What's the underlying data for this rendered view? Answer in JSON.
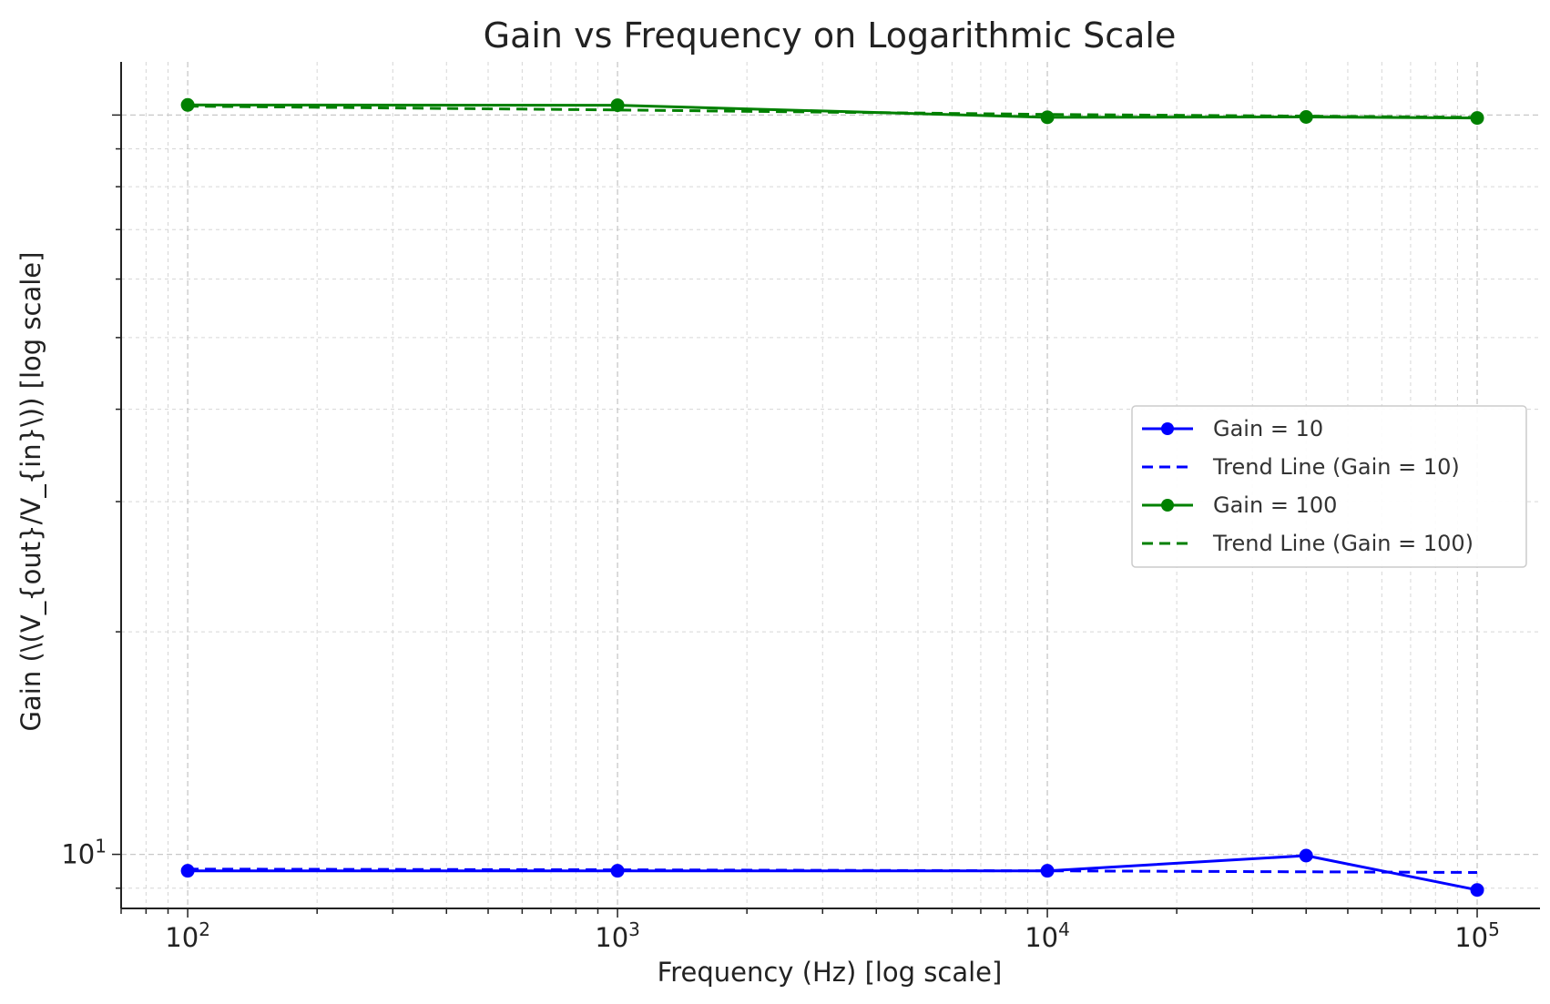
{
  "chart_data": {
    "type": "line",
    "title": "Gain vs Frequency on Logarithmic Scale",
    "xlabel": "Frequency (Hz) [log scale]",
    "ylabel": "Gain (\\(V_{out}/V_{in}\\)) [log scale]",
    "xscale": "log",
    "yscale": "log",
    "xlim": [
      70,
      140000
    ],
    "ylim": [
      8.45,
      118
    ],
    "grid": true,
    "legend_position": "center-right",
    "x_ticks": [
      {
        "base": "10",
        "exp": "2"
      },
      {
        "base": "10",
        "exp": "3"
      },
      {
        "base": "10",
        "exp": "4"
      },
      {
        "base": "10",
        "exp": "5"
      }
    ],
    "y_ticks": [
      {
        "value": 10,
        "base": "10",
        "exp": "1"
      }
    ],
    "series": [
      {
        "name": "Gain = 10",
        "color": "#0000ff",
        "style": "solid",
        "marker": "circle",
        "x": [
          100,
          1000,
          10000,
          40000,
          100000
        ],
        "y": [
          9.5,
          9.5,
          9.5,
          9.96,
          8.95
        ]
      },
      {
        "name": "Trend Line (Gain = 10)",
        "color": "#0000ff",
        "style": "dashed",
        "marker": "none",
        "x": [
          100,
          1000,
          10000,
          100000
        ],
        "y": [
          9.55,
          9.53,
          9.5,
          9.45
        ]
      },
      {
        "name": "Gain = 100",
        "color": "#008000",
        "style": "solid",
        "marker": "circle",
        "x": [
          100,
          1000,
          10000,
          40000,
          100000
        ],
        "y": [
          103.2,
          103.1,
          99.3,
          99.4,
          99.1
        ]
      },
      {
        "name": "Trend Line (Gain = 100)",
        "color": "#008000",
        "style": "dashed",
        "marker": "none",
        "x": [
          100,
          1000,
          10000,
          100000
        ],
        "y": [
          102.8,
          101.6,
          100.2,
          99.3
        ]
      }
    ]
  }
}
